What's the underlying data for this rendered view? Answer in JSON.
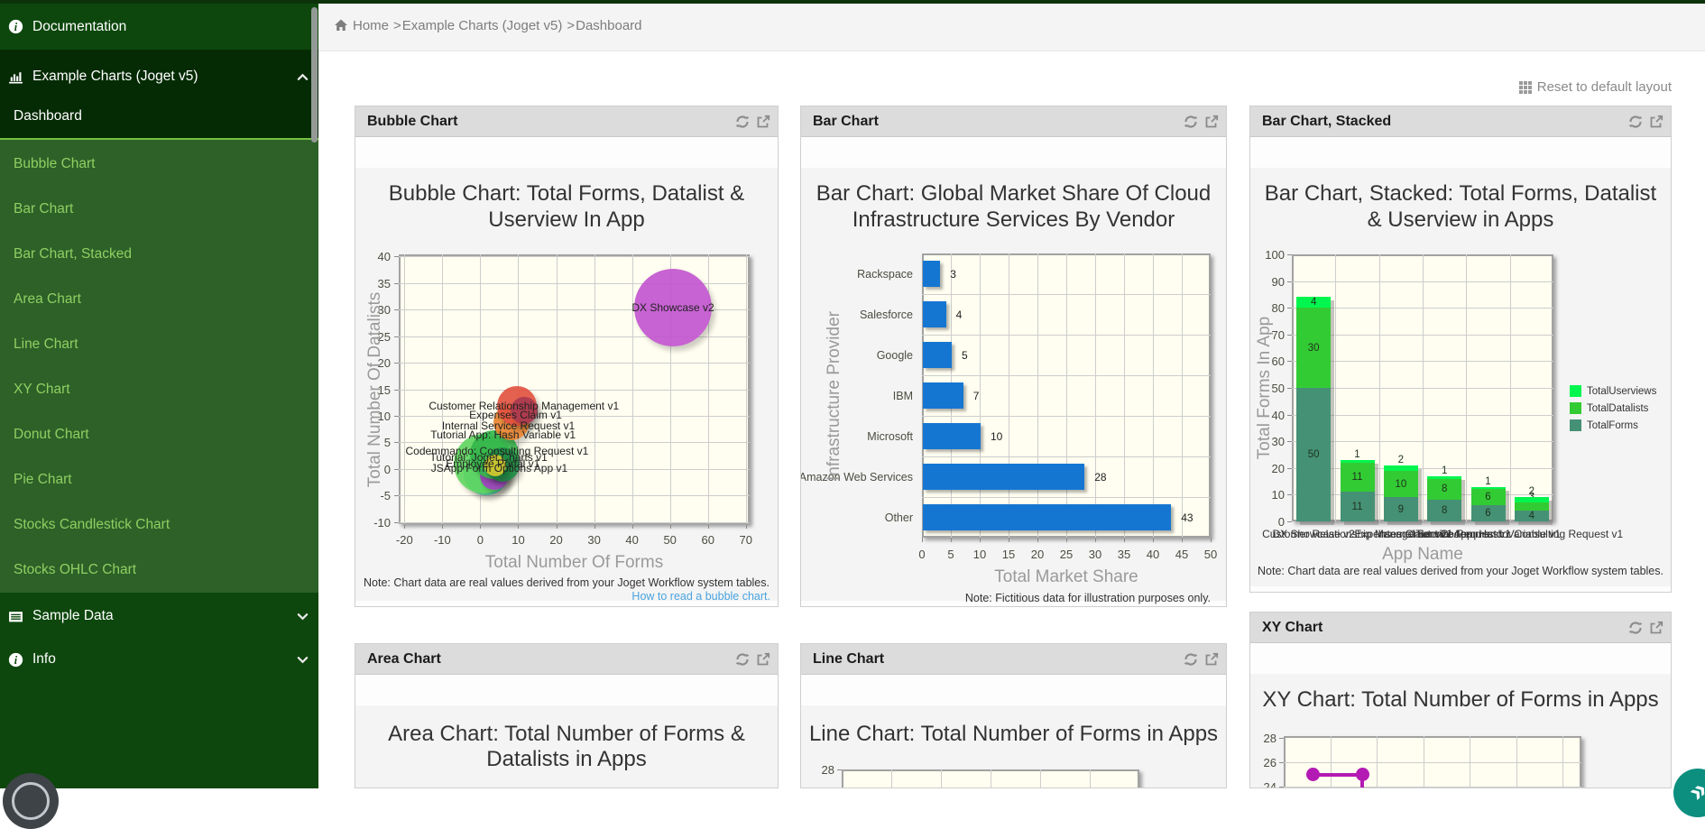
{
  "page": {
    "reset_layout_label": "Reset to default layout"
  },
  "sidebar": {
    "items_top": [
      {
        "label": "Documentation",
        "icon": "info-icon"
      },
      {
        "label": "Example Charts (Joget v5)",
        "icon": "bar-chart-icon",
        "state": "expanded"
      },
      {
        "label": "Dashboard"
      }
    ],
    "items_sub": [
      "Bubble Chart",
      "Bar Chart",
      "Bar Chart, Stacked",
      "Area Chart",
      "Line Chart",
      "XY Chart",
      "Donut Chart",
      "Pie Chart",
      "Stocks Candlestick Chart",
      "Stocks OHLC Chart"
    ],
    "items_bottom": [
      {
        "label": "Sample Data",
        "icon": "list-icon",
        "state": "collapsed"
      },
      {
        "label": "Info",
        "icon": "info-icon",
        "state": "collapsed"
      }
    ]
  },
  "breadcrumb": {
    "separator": ">",
    "items": [
      "Home",
      "Example Charts (Joget v5)",
      "Dashboard"
    ]
  },
  "panels": [
    {
      "id": "bubble",
      "header": "Bubble Chart"
    },
    {
      "id": "bar",
      "header": "Bar Chart"
    },
    {
      "id": "stacked",
      "header": "Bar Chart, Stacked"
    },
    {
      "id": "area",
      "header": "Area Chart"
    },
    {
      "id": "line",
      "header": "Line Chart"
    },
    {
      "id": "xy",
      "header": "XY Chart"
    }
  ],
  "fab": {
    "right_glyph": "»",
    "right_color": "#0d8f7f"
  },
  "chart_data": [
    {
      "type": "scatter",
      "title": "Bubble Chart: Total Forms, Datalist & Userview In App",
      "title_lines": [
        "Bubble Chart: Total Forms, Datalist &",
        "Userview In App"
      ],
      "xlabel": "Total Number Of Forms",
      "ylabel": "Total Number Of Datalists",
      "xlim": [
        -21.5,
        71
      ],
      "ylim": [
        -10.4,
        40.4
      ],
      "xticks": [
        -20,
        -10,
        0,
        10,
        20,
        30,
        40,
        50,
        60,
        70
      ],
      "yticks": [
        40,
        35,
        30,
        25,
        20,
        15,
        10,
        5,
        0,
        -5,
        -10
      ],
      "grid": true,
      "plot_bg": "#fffef0",
      "note": "Note: Chart data are real values derived from your Joget Workflow system tables.",
      "link_text": "How to read a bubble chart.",
      "bubbles": [
        {
          "name": "bubble-mint",
          "x": 1.5,
          "y": -0.8,
          "r": 25,
          "color": "#4adaa4"
        },
        {
          "name": "bubble-lightgreen",
          "x": 0.9,
          "y": 1.0,
          "r": 33,
          "color": "#5ed45e"
        },
        {
          "name": "bubble-purple",
          "x": 3.6,
          "y": -1.2,
          "r": 16,
          "color": "#a23ec2"
        },
        {
          "name": "bubble-green",
          "x": 3.7,
          "y": 2.6,
          "r": 27,
          "color": "#33b64a"
        },
        {
          "name": "bubble-darkgreen",
          "x": 5.8,
          "y": 0.8,
          "r": 19,
          "color": "#1f8a44"
        },
        {
          "name": "bubble-orange",
          "x": 8.2,
          "y": 8.8,
          "r": 20,
          "color": "#e8812c"
        },
        {
          "name": "bubble-red",
          "x": 9.7,
          "y": 11.8,
          "r": 22,
          "color": "#e2503e"
        },
        {
          "name": "bubble-darkred",
          "x": 11.6,
          "y": 11.0,
          "r": 15,
          "color": "#a93a50"
        },
        {
          "name": "bubble-yellow",
          "x": 4.0,
          "y": 0.6,
          "r": 12,
          "color": "#d7c92f"
        },
        {
          "name": "bubble-dx-showcase",
          "x": 50.8,
          "y": 30.4,
          "r": 43,
          "color": "#c253cf"
        }
      ],
      "labels": [
        {
          "text": "DX Showcase v2",
          "x": 50.8,
          "y": 30.3
        },
        {
          "text": "Customer Relationship Management v1",
          "x": 11.5,
          "y": 11.8
        },
        {
          "text": "Expenses Claim v1",
          "x": 9.3,
          "y": 10.1
        },
        {
          "text": "Internal Service Request v1",
          "x": 7.4,
          "y": 8.2
        },
        {
          "text": "Tutorial App: Hash Variable v1",
          "x": 6.0,
          "y": 6.4
        },
        {
          "text": "Codemmando: Consulting Request v1",
          "x": 4.4,
          "y": 3.3
        },
        {
          "text": "Tutorial: Joget Charts v1",
          "x": 2.2,
          "y": 2.1
        },
        {
          "text": "Employee Portal v1",
          "x": 3.3,
          "y": 0.9
        },
        {
          "text": "JSApp Form Options App v1",
          "x": 5.0,
          "y": 0.1
        }
      ]
    },
    {
      "type": "bar",
      "orientation": "horizontal",
      "title": "Bar Chart: Global Market Share Of Cloud Infrastructure Services By Vendor",
      "title_lines": [
        "Bar Chart: Global Market Share Of Cloud",
        "Infrastructure Services By Vendor"
      ],
      "categories": [
        "Rackspace",
        "Salesforce",
        "Google",
        "IBM",
        "Microsoft",
        "Amazon Web Services",
        "Other"
      ],
      "values": [
        3,
        4,
        5,
        7,
        10,
        28,
        43
      ],
      "bar_color": "#1576d2",
      "xlim": [
        0,
        50
      ],
      "xticks": [
        0,
        5,
        10,
        15,
        20,
        25,
        30,
        35,
        40,
        45,
        50
      ],
      "xlabel": "Total Market Share",
      "ylabel": "Infrastructure Provider",
      "grid": true,
      "plot_bg": "#fffef0",
      "note": "Note: Fictitious data for illustration purposes only."
    },
    {
      "type": "bar-stacked",
      "title": "Bar Chart, Stacked: Total Forms, Datalist & Userview in Apps",
      "title_lines": [
        "Bar Chart, Stacked: Total Forms, Datalist",
        "& Userview in Apps"
      ],
      "categories": [
        "DX Showcase v2",
        "Customer Relationship Management v1",
        "Expenses Claim v1",
        "Internal Service Request v1",
        "Tutorial App: Hash Variable v1",
        "Codemmando: Consulting Request v1"
      ],
      "series": [
        {
          "name": "TotalForms",
          "color": "#459175",
          "values": [
            50,
            11,
            9,
            8,
            6,
            4
          ]
        },
        {
          "name": "TotalDatalists",
          "color": "#33cb33",
          "values": [
            30,
            11,
            10,
            8,
            6,
            3
          ]
        },
        {
          "name": "TotalUserviews",
          "color": "#00f64e",
          "values": [
            4,
            1,
            2,
            1,
            1,
            2
          ]
        }
      ],
      "legend": [
        {
          "label": "TotalUserviews",
          "color": "#00f64e"
        },
        {
          "label": "TotalDatalists",
          "color": "#33cb33"
        },
        {
          "label": "TotalForms",
          "color": "#459175"
        }
      ],
      "legend_position": "right",
      "ylim": [
        0,
        100
      ],
      "yticks": [
        100,
        90,
        80,
        70,
        60,
        50,
        40,
        30,
        20,
        10,
        0
      ],
      "ylabel": "Total Forms In App",
      "xlabel": "App Name",
      "grid": true,
      "plot_bg": "#fffef0",
      "note": "Note: Chart data are real values derived from your Joget Workflow system tables."
    },
    {
      "type": "area",
      "title": "Area Chart: Total Number of Forms & Datalists in Apps",
      "title_lines": [
        "Area Chart: Total Number of Forms &",
        "Datalists in Apps"
      ]
    },
    {
      "type": "line",
      "title": "Line Chart: Total Number of Forms in Apps",
      "title_lines": [
        "Line Chart: Total Number of Forms in Apps"
      ],
      "yticks_visible": [
        28
      ],
      "grid": true,
      "plot_bg": "#fffef0"
    },
    {
      "type": "xy",
      "title": "XY Chart: Total Number of Forms in Apps",
      "title_lines": [
        "XY Chart: Total Number of Forms in Apps"
      ],
      "yticks_visible": [
        28,
        26,
        24
      ],
      "line_color": "#b31ab3",
      "visible_points": [
        {
          "x_frac": 0.097,
          "y": 25
        },
        {
          "x_frac": 0.264,
          "y": 25
        }
      ],
      "drop_after_last_point": true,
      "grid": true,
      "plot_bg": "#fffef0"
    }
  ]
}
